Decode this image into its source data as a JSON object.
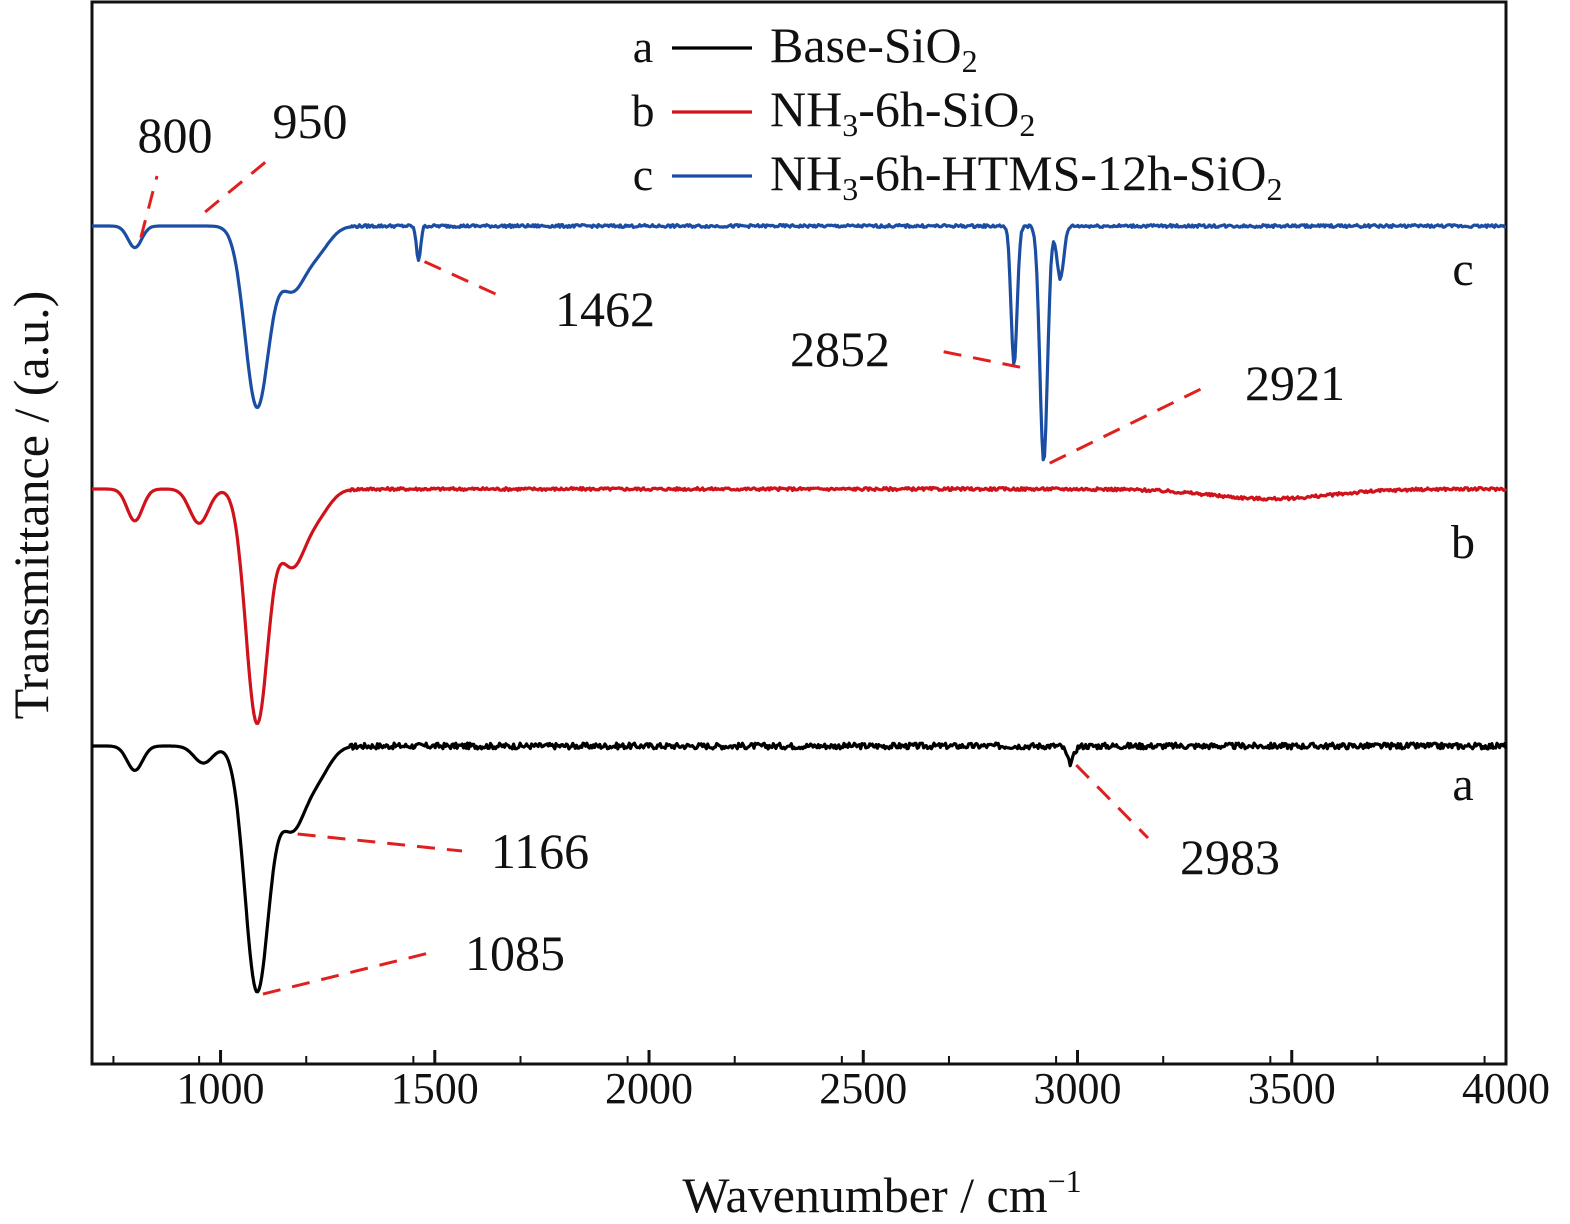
{
  "chart_data": {
    "type": "line",
    "title": "",
    "xlabel": "Wavenumber / cm",
    "xlabel_superscript": "−1",
    "ylabel": "Transmittance / (a.u.)",
    "xlim": [
      700,
      4000
    ],
    "x_ticks": [
      1000,
      1500,
      2000,
      2500,
      3000,
      3500,
      4000
    ],
    "x_tick_labels": [
      "1000",
      "1500",
      "2000",
      "2500",
      "3000",
      "3500",
      "4000"
    ],
    "x_minor_step": 250,
    "y_ticks_shown": false,
    "grid": false,
    "legend_position": "top",
    "series": [
      {
        "id": "a",
        "key": "a",
        "name": "Base-SiO",
        "name_subscript": "2",
        "curve_label": "a",
        "color": "#000000",
        "baseline": 0,
        "noise": 0.012,
        "offset": 0,
        "peaks": [
          {
            "x": 800,
            "depth": 0.1,
            "width": 18
          },
          {
            "x": 960,
            "depth": 0.07,
            "width": 22
          },
          {
            "x": 1085,
            "depth": 1.0,
            "width": 28
          },
          {
            "x": 1166,
            "depth": 0.32,
            "width": 30
          },
          {
            "x": 1225,
            "depth": 0.12,
            "width": 30
          },
          {
            "x": 2983,
            "depth": 0.07,
            "width": 8
          }
        ]
      },
      {
        "id": "b",
        "key": "b",
        "name": "NH",
        "name_parts": [
          [
            "NH",
            ""
          ],
          [
            "3",
            "sub"
          ],
          [
            "-6h-SiO",
            ""
          ],
          [
            "2",
            "sub"
          ]
        ],
        "curve_label": "b",
        "color": "#d0121b",
        "baseline": 0,
        "noise": 0.006,
        "offset": 1.05,
        "peaks": [
          {
            "x": 800,
            "depth": 0.13,
            "width": 18
          },
          {
            "x": 950,
            "depth": 0.14,
            "width": 22
          },
          {
            "x": 1085,
            "depth": 0.95,
            "width": 26
          },
          {
            "x": 1166,
            "depth": 0.3,
            "width": 30
          },
          {
            "x": 1225,
            "depth": 0.1,
            "width": 30
          },
          {
            "x": 3450,
            "depth": 0.04,
            "width": 140
          }
        ]
      },
      {
        "id": "c",
        "key": "c",
        "name": "NH",
        "name_parts": [
          [
            "NH",
            ""
          ],
          [
            "3",
            "sub"
          ],
          [
            "-6h-HTMS-12h-SiO",
            ""
          ],
          [
            "2",
            "sub"
          ]
        ],
        "curve_label": "c",
        "color": "#1b4ea3",
        "baseline": 0,
        "noise": 0.006,
        "offset": 2.1,
        "peaks": [
          {
            "x": 800,
            "depth": 0.09,
            "width": 16
          },
          {
            "x": 1085,
            "depth": 0.75,
            "width": 28
          },
          {
            "x": 1166,
            "depth": 0.25,
            "width": 30
          },
          {
            "x": 1225,
            "depth": 0.1,
            "width": 30
          },
          {
            "x": 1462,
            "depth": 0.14,
            "width": 5
          },
          {
            "x": 2852,
            "depth": 0.58,
            "width": 7
          },
          {
            "x": 2921,
            "depth": 0.98,
            "width": 9
          },
          {
            "x": 2960,
            "depth": 0.22,
            "width": 8
          }
        ]
      }
    ],
    "annotations": [
      {
        "text": "800",
        "series": "c",
        "x": 800
      },
      {
        "text": "950",
        "series": "c",
        "x": 950
      },
      {
        "text": "1462",
        "series": "c",
        "x": 1462
      },
      {
        "text": "2852",
        "series": "c",
        "x": 2852
      },
      {
        "text": "2921",
        "series": "c",
        "x": 2921
      },
      {
        "text": "1166",
        "series": "a",
        "x": 1166
      },
      {
        "text": "1085",
        "series": "a",
        "x": 1085
      },
      {
        "text": "2983",
        "series": "a",
        "x": 2983
      }
    ],
    "annotation_line_color": "#e0201f"
  }
}
